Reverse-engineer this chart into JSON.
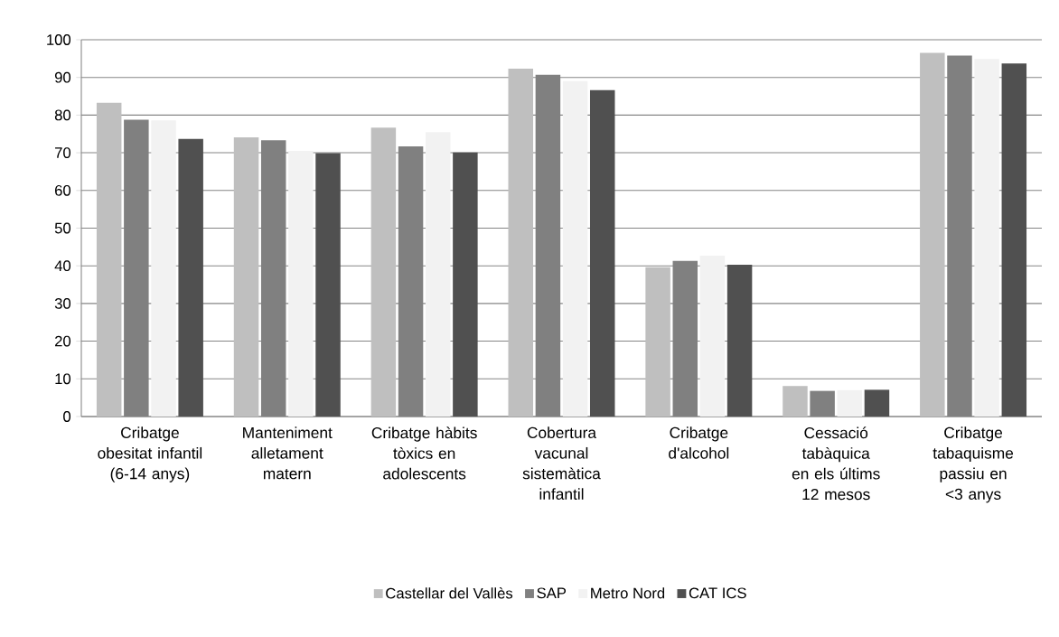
{
  "chart_data": {
    "type": "bar",
    "categories": [
      "Cribatge obesitat infantil (6-14 anys)",
      "Manteniment alletament matern",
      "Cribatge hàbits tòxics en adolescents",
      "Cobertura vacunal sistemàtica infantil",
      "Cribatge d'alcohol",
      "Cessació tabàquica en els últims 12 mesos",
      "Cribatge tabaquisme passiu en <3 anys"
    ],
    "series": [
      {
        "name": "Castellar del Vallès",
        "color": "#bfbfbf",
        "values": [
          83.3,
          74.1,
          76.7,
          92.3,
          39.6,
          8.1,
          96.5
        ]
      },
      {
        "name": "SAP",
        "color": "#808080",
        "values": [
          78.8,
          73.3,
          71.7,
          90.7,
          41.3,
          6.8,
          95.8
        ]
      },
      {
        "name": "Metro Nord",
        "color": "#f2f2f2",
        "values": [
          78.6,
          70.5,
          75.5,
          89.0,
          42.7,
          7.0,
          94.9
        ]
      },
      {
        "name": "CAT ICS",
        "color": "#505050",
        "values": [
          73.7,
          69.9,
          70.1,
          86.6,
          40.3,
          7.1,
          93.7
        ]
      }
    ],
    "ylim": [
      0,
      100
    ],
    "yticks": [
      0,
      10,
      20,
      30,
      40,
      50,
      60,
      70,
      80,
      90,
      100
    ],
    "grid": "y",
    "legend": "bottom"
  }
}
